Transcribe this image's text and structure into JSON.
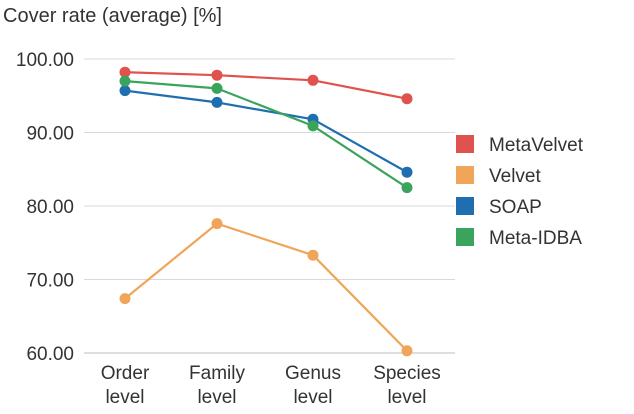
{
  "chart_data": {
    "type": "line",
    "title": "Cover rate (average) [%]",
    "xlabel": "",
    "ylabel": "",
    "ylim": [
      60,
      100
    ],
    "yticks": [
      "100.00",
      "90.00",
      "80.00",
      "70.00",
      "60.00"
    ],
    "ytick_values": [
      100,
      90,
      80,
      70,
      60
    ],
    "categories": [
      [
        "Order",
        "level"
      ],
      [
        "Family",
        "level"
      ],
      [
        "Genus",
        "level"
      ],
      [
        "Species",
        "level"
      ]
    ],
    "grid": true,
    "legend_position": "right",
    "series": [
      {
        "name": "MetaVelvet",
        "color": "#e0524e",
        "values": [
          98.2,
          97.8,
          97.1,
          94.6
        ]
      },
      {
        "name": "Velvet",
        "color": "#f0a55a",
        "values": [
          67.4,
          77.6,
          73.3,
          60.3
        ]
      },
      {
        "name": "SOAP",
        "color": "#1f6fb0",
        "values": [
          95.7,
          94.1,
          91.8,
          84.6
        ]
      },
      {
        "name": "Meta-IDBA",
        "color": "#3aa35c",
        "values": [
          97.0,
          96.0,
          90.9,
          82.5
        ]
      }
    ]
  }
}
